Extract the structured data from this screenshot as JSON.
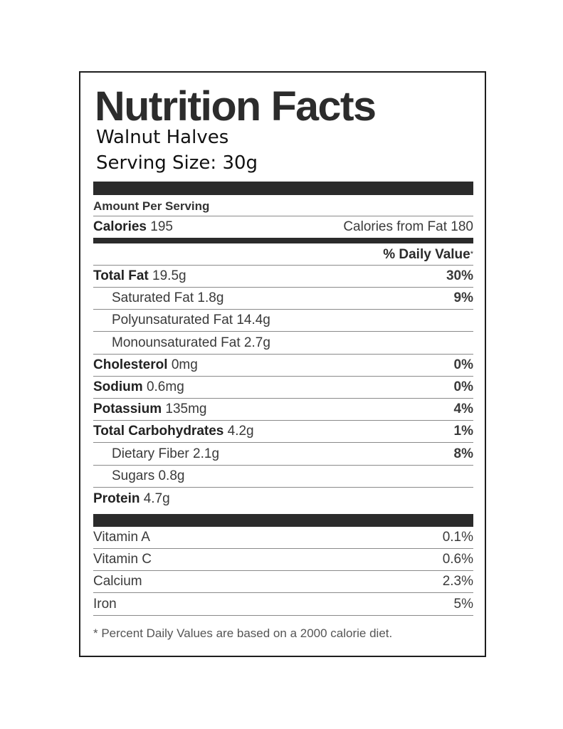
{
  "title": "Nutrition Facts",
  "product": "Walnut Halves",
  "serving_size": "Serving Size: 30g",
  "amount_per_serving": "Amount Per Serving",
  "calories": {
    "label": "Calories",
    "value": "195",
    "from_fat": "Calories from Fat 180"
  },
  "daily_value_header": "% Daily Value",
  "daily_value_mark": "*",
  "nutrients": [
    {
      "label": "Total Fat",
      "amount": "19.5g",
      "dv": "30%"
    },
    {
      "label": "Saturated Fat",
      "amount": "1.8g",
      "dv": "9%"
    },
    {
      "label": "Polyunsaturated Fat",
      "amount": "14.4g",
      "dv": ""
    },
    {
      "label": "Monounsaturated Fat",
      "amount": "2.7g",
      "dv": ""
    },
    {
      "label": "Cholesterol",
      "amount": "0mg",
      "dv": "0%"
    },
    {
      "label": "Sodium",
      "amount": "0.6mg",
      "dv": "0%"
    },
    {
      "label": "Potassium",
      "amount": "135mg",
      "dv": "4%"
    },
    {
      "label": "Total Carbohydrates",
      "amount": "4.2g",
      "dv": "1%"
    },
    {
      "label": "Dietary Fiber",
      "amount": "2.1g",
      "dv": "8%"
    },
    {
      "label": "Sugars",
      "amount": "0.8g",
      "dv": ""
    },
    {
      "label": "Protein",
      "amount": "4.7g",
      "dv": ""
    }
  ],
  "vitamins": [
    {
      "label": "Vitamin A",
      "dv": "0.1%"
    },
    {
      "label": "Vitamin C",
      "dv": "0.6%"
    },
    {
      "label": "Calcium",
      "dv": "2.3%"
    },
    {
      "label": "Iron",
      "dv": "5%"
    }
  ],
  "footnote": "* Percent Daily Values are based on a 2000 calorie diet."
}
